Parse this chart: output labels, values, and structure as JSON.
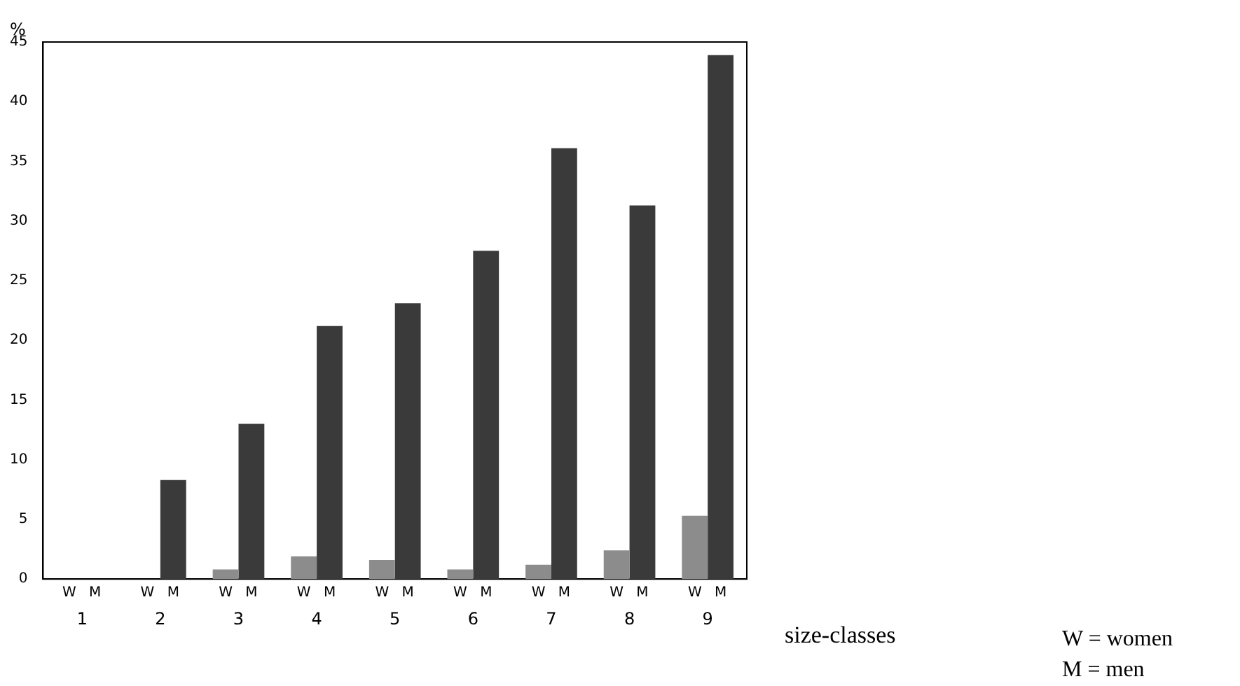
{
  "chart_data": {
    "type": "bar",
    "xlabel": "size-classes",
    "ylabel": "%",
    "categories": [
      "1",
      "2",
      "3",
      "4",
      "5",
      "6",
      "7",
      "8",
      "9"
    ],
    "series": [
      {
        "name": "W",
        "color": "#8c8c8c",
        "values": [
          0,
          0,
          0.8,
          1.9,
          1.6,
          0.8,
          1.2,
          2.4,
          5.3
        ]
      },
      {
        "name": "M",
        "color": "#3a3a3a",
        "values": [
          0,
          8.3,
          13.0,
          21.2,
          23.1,
          27.5,
          36.1,
          31.3,
          43.9
        ]
      }
    ],
    "ylim": [
      0,
      45
    ],
    "yticks": [
      0,
      5,
      10,
      15,
      20,
      25,
      30,
      35,
      40,
      45
    ],
    "grid": false,
    "legend": false,
    "annotations": [
      "W = women",
      "M = men"
    ]
  }
}
